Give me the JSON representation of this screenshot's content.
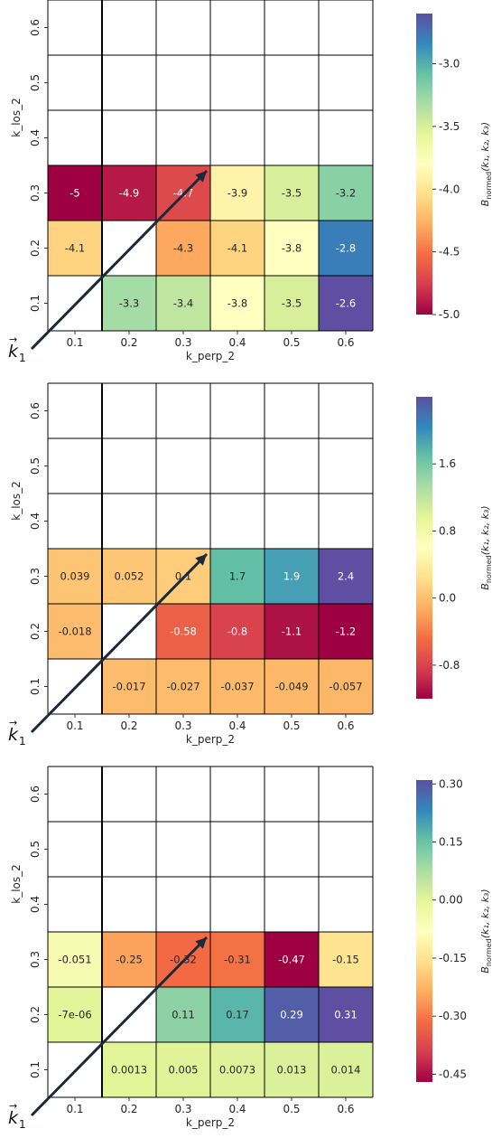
{
  "chart_data": [
    {
      "type": "heatmap",
      "xlabel": "k_perp_2",
      "ylabel": "k_los_2",
      "x_ticks": [
        "0.1",
        "0.2",
        "0.3",
        "0.4",
        "0.5",
        "0.6"
      ],
      "y_ticks": [
        "0.1",
        "0.2",
        "0.3",
        "0.4",
        "0.5",
        "0.6"
      ],
      "vector_label": "k1",
      "colorbar_label": "B_normed(k1,k2,k3)",
      "colormap": "Spectral",
      "vmin": -5.0,
      "vmax": -2.6,
      "colorbar_ticks": [
        "-3.0",
        "-3.5",
        "-4.0",
        "-4.5",
        "-5.0"
      ],
      "colorbar_tick_values": [
        -3.0,
        -3.5,
        -4.0,
        -4.5,
        -5.0
      ],
      "rows": [
        {
          "y": "0.1",
          "values": [
            null,
            -3.3,
            -3.4,
            -3.8,
            -3.5,
            -2.6
          ],
          "labels": [
            "",
            "-3.3",
            "-3.4",
            "-3.8",
            "-3.5",
            "-2.6"
          ]
        },
        {
          "y": "0.2",
          "values": [
            -4.1,
            null,
            -4.3,
            -4.1,
            -3.8,
            -2.8
          ],
          "labels": [
            "-4.1",
            "",
            "-4.3",
            "-4.1",
            "-3.8",
            "-2.8"
          ]
        },
        {
          "y": "0.3",
          "values": [
            -5.0,
            -4.9,
            -4.7,
            -3.9,
            -3.5,
            -3.2
          ],
          "labels": [
            "-5",
            "-4.9",
            "-4.7",
            "-3.9",
            "-3.5",
            "-3.2"
          ]
        },
        {
          "y": "0.4",
          "values": [
            null,
            null,
            null,
            null,
            null,
            null
          ],
          "labels": [
            "",
            "",
            "",
            "",
            "",
            ""
          ]
        },
        {
          "y": "0.5",
          "values": [
            null,
            null,
            null,
            null,
            null,
            null
          ],
          "labels": [
            "",
            "",
            "",
            "",
            "",
            ""
          ]
        },
        {
          "y": "0.6",
          "values": [
            null,
            null,
            null,
            null,
            null,
            null
          ],
          "labels": [
            "",
            "",
            "",
            "",
            "",
            ""
          ]
        }
      ]
    },
    {
      "type": "heatmap",
      "xlabel": "k_perp_2",
      "ylabel": "k_los_2",
      "x_ticks": [
        "0.1",
        "0.2",
        "0.3",
        "0.4",
        "0.5",
        "0.6"
      ],
      "y_ticks": [
        "0.1",
        "0.2",
        "0.3",
        "0.4",
        "0.5",
        "0.6"
      ],
      "vector_label": "k1",
      "colorbar_label": "B_normed(k1,k2,k3)",
      "colormap": "Spectral",
      "vmin": -1.2,
      "vmax": 2.4,
      "colorbar_ticks": [
        "1.6",
        "0.8",
        "0.0",
        "-0.8"
      ],
      "colorbar_tick_values": [
        1.6,
        0.8,
        0.0,
        -0.8
      ],
      "rows": [
        {
          "y": "0.1",
          "values": [
            null,
            -0.017,
            -0.027,
            -0.037,
            -0.049,
            -0.057
          ],
          "labels": [
            "",
            "-0.017",
            "-0.027",
            "-0.037",
            "-0.049",
            "-0.057"
          ]
        },
        {
          "y": "0.2",
          "values": [
            -0.018,
            null,
            -0.58,
            -0.8,
            -1.1,
            -1.2
          ],
          "labels": [
            "-0.018",
            "",
            "-0.58",
            "-0.8",
            "-1.1",
            "-1.2"
          ]
        },
        {
          "y": "0.3",
          "values": [
            0.039,
            0.052,
            0.1,
            1.7,
            1.9,
            2.4
          ],
          "labels": [
            "0.039",
            "0.052",
            "0.1",
            "1.7",
            "1.9",
            "2.4"
          ]
        },
        {
          "y": "0.4",
          "values": [
            null,
            null,
            null,
            null,
            null,
            null
          ],
          "labels": [
            "",
            "",
            "",
            "",
            "",
            ""
          ]
        },
        {
          "y": "0.5",
          "values": [
            null,
            null,
            null,
            null,
            null,
            null
          ],
          "labels": [
            "",
            "",
            "",
            "",
            "",
            ""
          ]
        },
        {
          "y": "0.6",
          "values": [
            null,
            null,
            null,
            null,
            null,
            null
          ],
          "labels": [
            "",
            "",
            "",
            "",
            "",
            ""
          ]
        }
      ]
    },
    {
      "type": "heatmap",
      "xlabel": "k_perp_2",
      "ylabel": "k_los_2",
      "x_ticks": [
        "0.1",
        "0.2",
        "0.3",
        "0.4",
        "0.5",
        "0.6"
      ],
      "y_ticks": [
        "0.1",
        "0.2",
        "0.3",
        "0.4",
        "0.5",
        "0.6"
      ],
      "vector_label": "k1",
      "colorbar_label": "B_normed(k1,k2,k3)",
      "colormap": "Spectral",
      "vmin": -0.47,
      "vmax": 0.31,
      "colorbar_ticks": [
        "0.30",
        "0.15",
        "0.00",
        "-0.15",
        "-0.30",
        "-0.45"
      ],
      "colorbar_tick_values": [
        0.3,
        0.15,
        0.0,
        -0.15,
        -0.3,
        -0.45
      ],
      "rows": [
        {
          "y": "0.1",
          "values": [
            null,
            0.0013,
            0.005,
            0.0073,
            0.013,
            0.014
          ],
          "labels": [
            "",
            "0.0013",
            "0.005",
            "0.0073",
            "0.013",
            "0.014"
          ]
        },
        {
          "y": "0.2",
          "values": [
            -7e-06,
            null,
            0.11,
            0.17,
            0.29,
            0.31
          ],
          "labels": [
            "-7e-06",
            "",
            "0.11",
            "0.17",
            "0.29",
            "0.31"
          ]
        },
        {
          "y": "0.3",
          "values": [
            -0.051,
            -0.25,
            -0.32,
            -0.31,
            -0.47,
            -0.15
          ],
          "labels": [
            "-0.051",
            "-0.25",
            "-0.32",
            "-0.31",
            "-0.47",
            "-0.15"
          ]
        },
        {
          "y": "0.4",
          "values": [
            null,
            null,
            null,
            null,
            null,
            null
          ],
          "labels": [
            "",
            "",
            "",
            "",
            "",
            ""
          ]
        },
        {
          "y": "0.5",
          "values": [
            null,
            null,
            null,
            null,
            null,
            null
          ],
          "labels": [
            "",
            "",
            "",
            "",
            "",
            ""
          ]
        },
        {
          "y": "0.6",
          "values": [
            null,
            null,
            null,
            null,
            null,
            null
          ],
          "labels": [
            "",
            "",
            "",
            "",
            "",
            ""
          ]
        }
      ]
    }
  ]
}
